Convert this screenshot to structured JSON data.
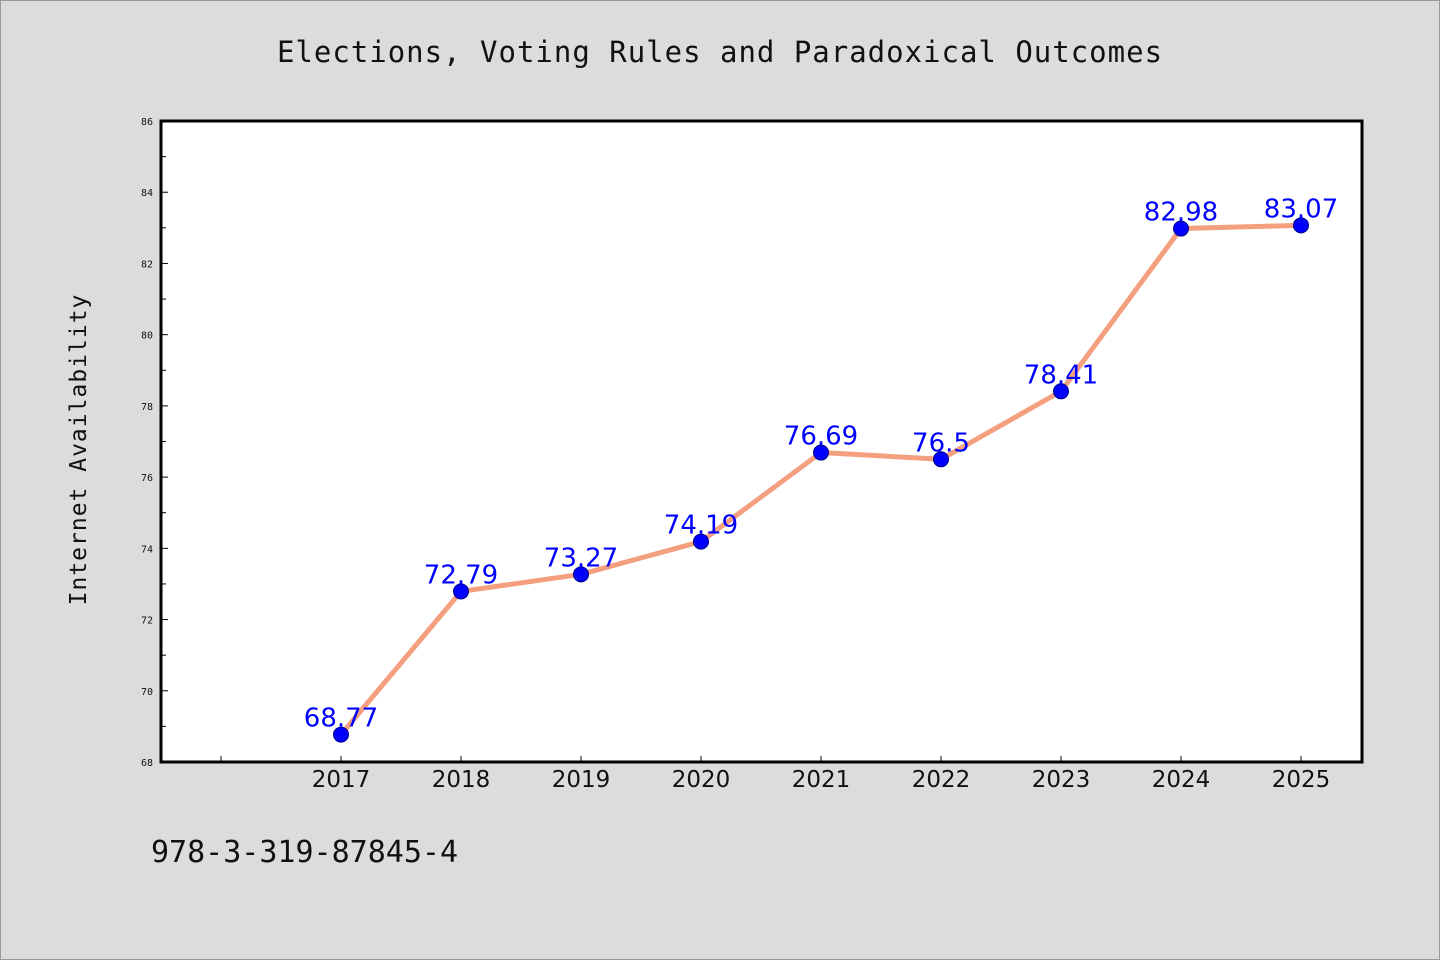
{
  "chart_data": {
    "type": "line",
    "title": "Elections, Voting Rules and Paradoxical Outcomes",
    "xlabel": "",
    "ylabel": "Internet Availability",
    "categories": [
      "2017",
      "2018",
      "2019",
      "2020",
      "2021",
      "2022",
      "2023",
      "2024",
      "2025"
    ],
    "series": [
      {
        "values": [
          68.77,
          72.79,
          73.27,
          74.19,
          76.69,
          76.5,
          78.41,
          82.98,
          83.07
        ],
        "data_labels": [
          "68.77",
          "72.79",
          "73.27",
          "74.19",
          "76.69",
          "76.5",
          "78.41",
          "82.98",
          "83.07"
        ]
      }
    ],
    "ylim": [
      68,
      86
    ],
    "yticks": [
      "68",
      "70",
      "72",
      "74",
      "76",
      "78",
      "80",
      "82",
      "84",
      "86"
    ],
    "grid": false,
    "legend": "none"
  },
  "colors": {
    "line": "#f4a07f",
    "marker": "#0000ff",
    "marker_edge": "#00008b",
    "label": "#0000ff",
    "background": "#dcdcdc",
    "plot_background": "#ffffff"
  },
  "footer": {
    "code": "978-3-319-87845-4"
  }
}
